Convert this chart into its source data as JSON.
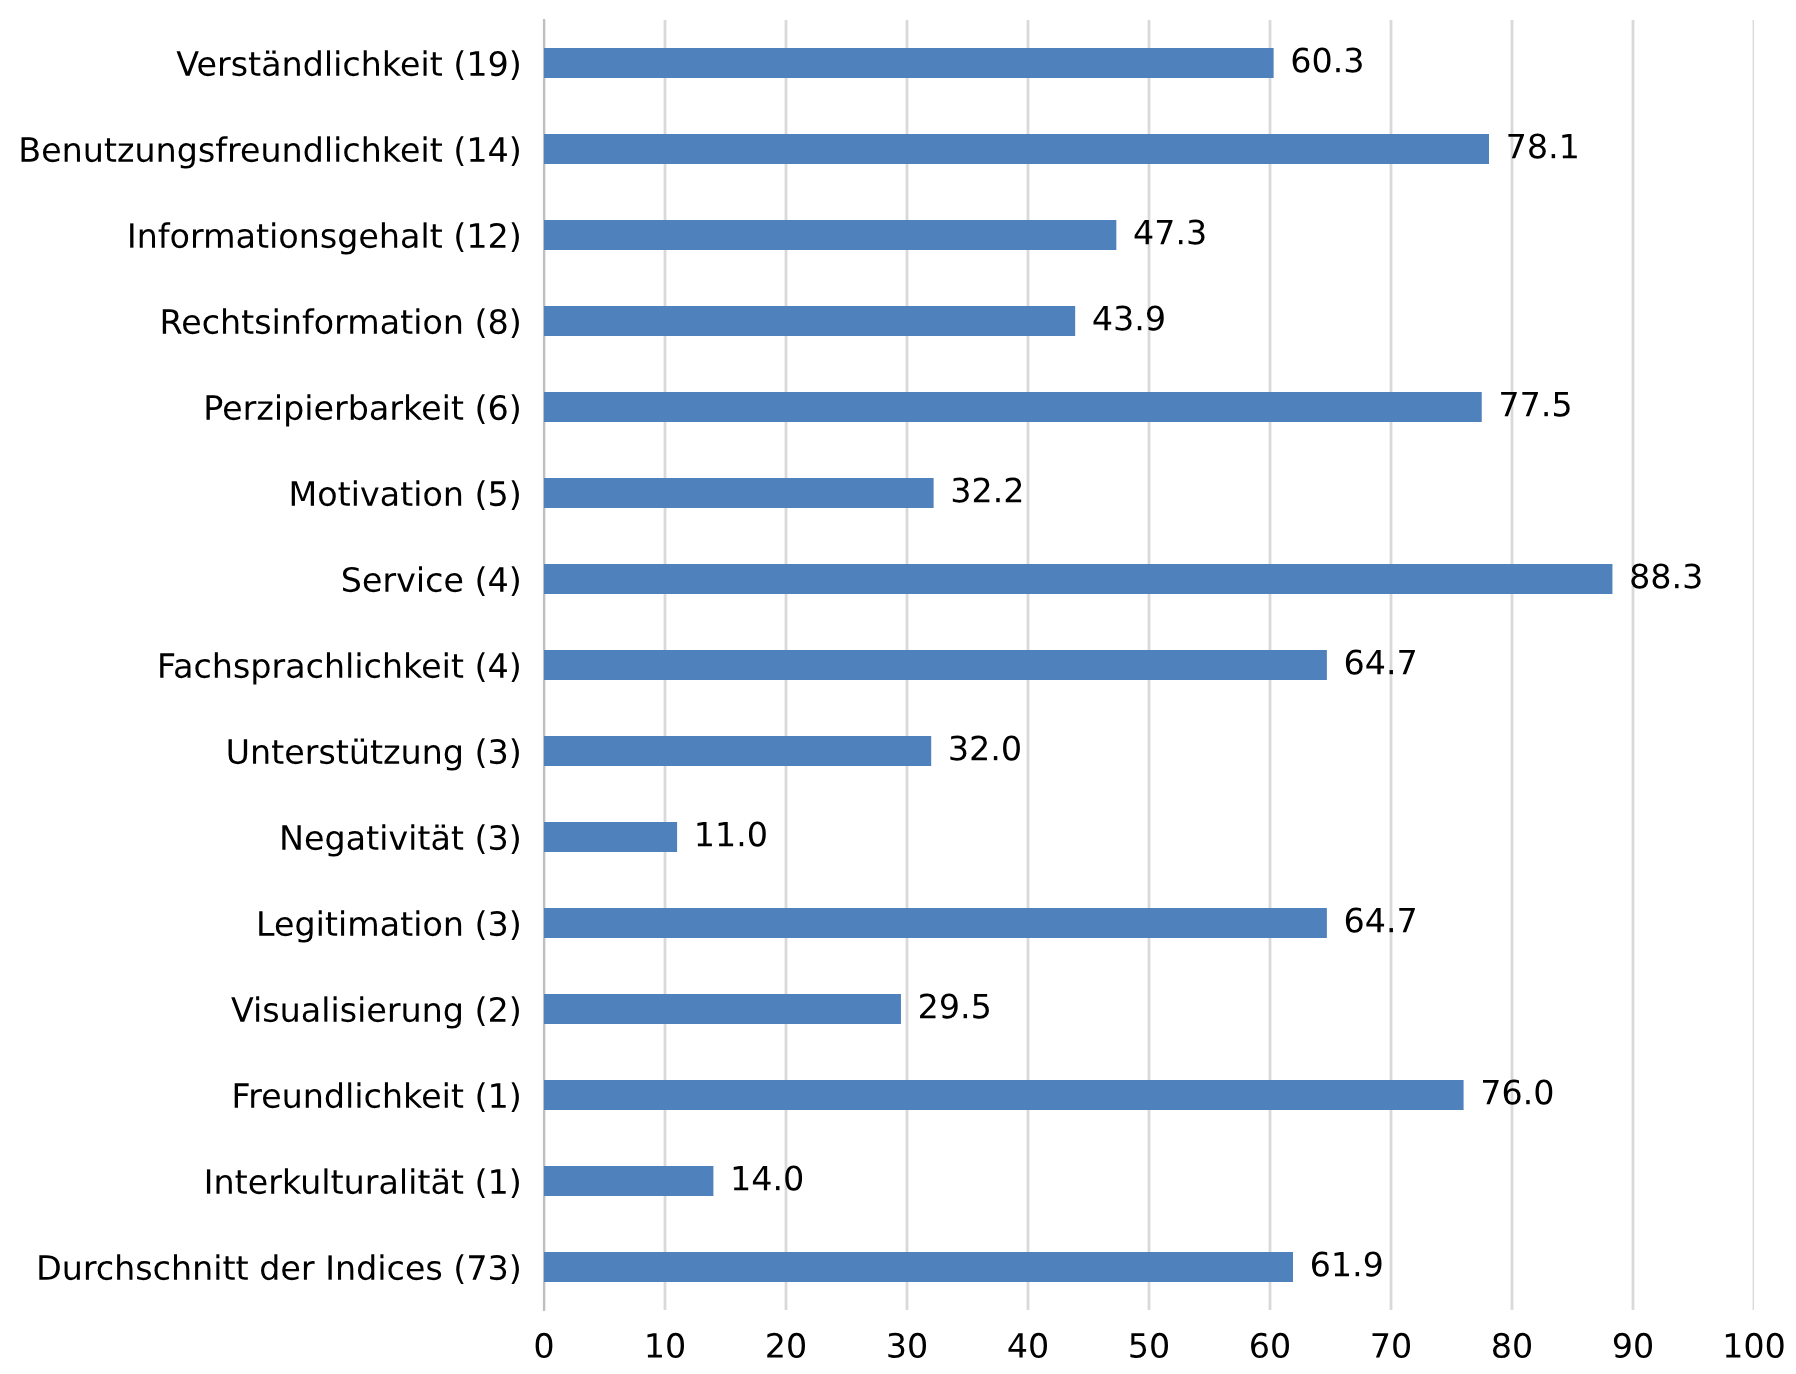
{
  "chart_data": {
    "type": "bar",
    "orientation": "horizontal",
    "categories": [
      "Verständlichkeit (19)",
      "Benutzungsfreundlichkeit (14)",
      "Informationsgehalt (12)",
      "Rechtsinformation (8)",
      "Perzipierbarkeit (6)",
      "Motivation (5)",
      "Service (4)",
      "Fachsprachlichkeit (4)",
      "Unterstützung (3)",
      "Negativität (3)",
      "Legitimation (3)",
      "Visualisierung (2)",
      "Freundlichkeit (1)",
      "Interkulturalität (1)",
      "Durchschnitt der Indices (73)"
    ],
    "values": [
      60.3,
      78.1,
      47.3,
      43.9,
      77.5,
      32.2,
      88.3,
      64.7,
      32.0,
      11.0,
      64.7,
      29.5,
      76.0,
      14.0,
      61.9
    ],
    "value_labels": [
      "60.3",
      "78.1",
      "47.3",
      "43.9",
      "77.5",
      "32.2",
      "88.3",
      "64.7",
      "32.0",
      "11.0",
      "64.7",
      "29.5",
      "76.0",
      "14.0",
      "61.9"
    ],
    "color": "#4f81bd",
    "xlim": [
      0,
      100
    ],
    "xticks": [
      0,
      10,
      20,
      30,
      40,
      50,
      60,
      70,
      80,
      90,
      100
    ],
    "grid": "x"
  }
}
